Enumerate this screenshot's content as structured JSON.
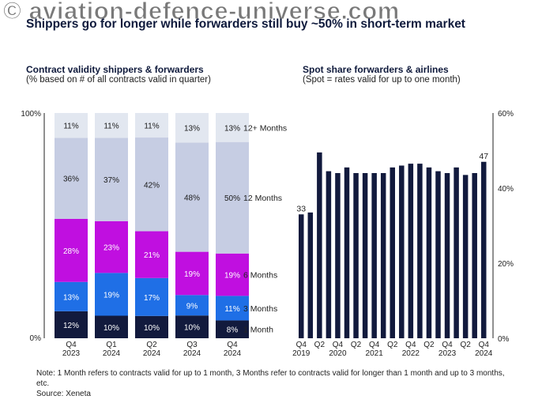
{
  "watermark": "© aviation-defence-universe.com",
  "headline": "Shippers go for longer while forwarders still buy ~50% in short-term market",
  "left_panel": {
    "title": "Contract validity shippers & forwarders",
    "subtitle": "(% based on # of all contracts valid in quarter)"
  },
  "right_panel": {
    "title": "Spot share forwarders & airlines",
    "subtitle": "(Spot = rates valid for up to one month)"
  },
  "note": "Note: 1 Month refers to contracts valid for up to 1 month, 3 Months refer to contracts valid for longer than 1 month and up to 3 months, etc.",
  "source": "Source: Xeneta",
  "colors": {
    "1 Month": "#121a3d",
    "3 Months": "#1f6fe6",
    "6 Months": "#c00fe0",
    "12 Months": "#c6cde3",
    "12+ Months": "#e2e7f0",
    "spot_bar": "#121a3d"
  },
  "chart_data": [
    {
      "type": "bar",
      "stacked": true,
      "categories": [
        "Q4 2023",
        "Q1 2024",
        "Q2 2024",
        "Q3 2024",
        "Q4 2024"
      ],
      "category_lines": [
        [
          "Q4",
          "2023"
        ],
        [
          "Q1",
          "2024"
        ],
        [
          "Q2",
          "2024"
        ],
        [
          "Q3",
          "2024"
        ],
        [
          "Q4",
          "2024"
        ]
      ],
      "series": [
        {
          "name": "1 Month",
          "values": [
            12,
            10,
            10,
            10,
            8
          ],
          "labels": [
            "12%",
            "10%",
            "10%",
            "10%",
            "8%"
          ]
        },
        {
          "name": "3 Months",
          "values": [
            13,
            19,
            17,
            9,
            11
          ],
          "labels": [
            "13%",
            "19%",
            "17%",
            "9%",
            "11%"
          ]
        },
        {
          "name": "6 Months",
          "values": [
            28,
            23,
            21,
            19,
            19
          ],
          "labels": [
            "28%",
            "23%",
            "21%",
            "19%",
            "19%"
          ]
        },
        {
          "name": "12 Months",
          "values": [
            36,
            37,
            42,
            48,
            50
          ],
          "labels": [
            "36%",
            "37%",
            "42%",
            "48%",
            "50%"
          ]
        },
        {
          "name": "12+ Months",
          "values": [
            11,
            11,
            11,
            13,
            13
          ],
          "labels": [
            "11%",
            "11%",
            "11%",
            "13%",
            "13%"
          ]
        }
      ],
      "yticks": [
        "0%",
        "100%"
      ],
      "ylim": [
        0,
        100
      ],
      "legend_placement": "right"
    },
    {
      "type": "bar",
      "x": [
        "Q4 2019",
        "Q1 2020",
        "Q2 2020",
        "Q3 2020",
        "Q4 2020",
        "Q1 2021",
        "Q2 2021",
        "Q3 2021",
        "Q4 2021",
        "Q1 2022",
        "Q2 2022",
        "Q3 2022",
        "Q4 2022",
        "Q1 2023",
        "Q2 2023",
        "Q3 2023",
        "Q4 2023",
        "Q1 2024",
        "Q2 2024",
        "Q3 2024",
        "Q4 2024"
      ],
      "values": [
        33,
        33.5,
        49.5,
        44.5,
        44,
        45.5,
        44,
        44,
        44,
        44,
        45.5,
        46,
        46.5,
        46.5,
        45.5,
        44.5,
        44,
        45.5,
        43.5,
        44,
        47
      ],
      "data_labels": [
        {
          "index": 0,
          "text": "33"
        },
        {
          "index": 20,
          "text": "47"
        }
      ],
      "xticks": [
        {
          "index": 0,
          "lines": [
            "Q4",
            "2019"
          ]
        },
        {
          "index": 2,
          "lines": [
            "Q2",
            ""
          ]
        },
        {
          "index": 4,
          "lines": [
            "Q4",
            "2020"
          ]
        },
        {
          "index": 6,
          "lines": [
            "Q2",
            ""
          ]
        },
        {
          "index": 8,
          "lines": [
            "Q4",
            "2021"
          ]
        },
        {
          "index": 10,
          "lines": [
            "Q2",
            ""
          ]
        },
        {
          "index": 12,
          "lines": [
            "Q4",
            "2022"
          ]
        },
        {
          "index": 14,
          "lines": [
            "Q2",
            ""
          ]
        },
        {
          "index": 16,
          "lines": [
            "Q4",
            "2023"
          ]
        },
        {
          "index": 18,
          "lines": [
            "Q2",
            ""
          ]
        },
        {
          "index": 20,
          "lines": [
            "Q4",
            "2024"
          ]
        }
      ],
      "yticks": [
        0,
        20,
        40,
        60
      ],
      "ytick_labels": [
        "0%",
        "20%",
        "40%",
        "60%"
      ],
      "ylim": [
        0,
        60
      ],
      "y_axis_side": "right"
    }
  ]
}
